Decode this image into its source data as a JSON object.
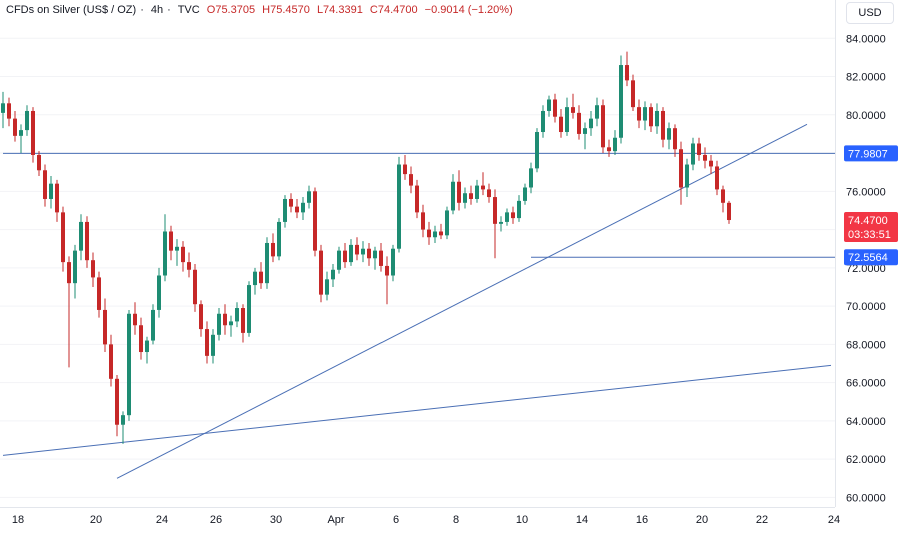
{
  "header": {
    "symbol": "CFDs on Silver (US$ / OZ)",
    "separator": "·",
    "interval": "4h",
    "source": "TVC",
    "open": "O75.3705",
    "high": "H75.4570",
    "low": "L74.3391",
    "close": "C74.4700",
    "change": "−0.9014 (−1.20%)"
  },
  "currency": "USD",
  "colors": {
    "up": "#26a69a",
    "down": "#ef5350",
    "body_up": "#1e8c73",
    "body_down": "#c62828",
    "line": "#4a6fb5",
    "axis_text": "#131722",
    "label_bg": "#2962ff"
  },
  "chart_data": {
    "type": "candlestick",
    "symbol": "CFDs on Silver (US$ / OZ)",
    "interval": "4h",
    "ylim": [
      59.5,
      86.0
    ],
    "y_ticks": [
      "84.0000",
      "82.0000",
      "80.0000",
      "78.0000",
      "76.0000",
      "74.0000",
      "72.0000",
      "70.0000",
      "68.0000",
      "66.0000",
      "64.0000",
      "62.0000",
      "60.0000"
    ],
    "x_ticks": [
      "18",
      "20",
      "24",
      "26",
      "30",
      "Apr",
      "6",
      "8",
      "10",
      "14",
      "16",
      "20",
      "22",
      "24"
    ],
    "x_tick_idx": [
      0,
      13,
      24,
      33,
      43,
      53,
      63,
      73,
      84,
      94,
      104,
      114,
      124,
      136
    ],
    "n_bars": 138,
    "candles": [
      [
        80.1,
        81.2,
        79.3,
        80.6
      ],
      [
        80.6,
        80.9,
        79.4,
        79.8
      ],
      [
        79.8,
        80.2,
        78.6,
        78.9
      ],
      [
        78.9,
        79.5,
        78.0,
        79.2
      ],
      [
        79.2,
        80.5,
        78.9,
        80.2
      ],
      [
        80.2,
        80.4,
        77.5,
        77.9
      ],
      [
        77.9,
        78.1,
        76.8,
        77.1
      ],
      [
        77.1,
        77.4,
        75.2,
        75.6
      ],
      [
        75.6,
        76.8,
        75.1,
        76.4
      ],
      [
        76.4,
        76.6,
        74.4,
        74.9
      ],
      [
        74.9,
        75.2,
        71.8,
        72.3
      ],
      [
        72.3,
        72.6,
        66.8,
        71.2
      ],
      [
        71.2,
        73.2,
        70.4,
        72.9
      ],
      [
        72.9,
        74.8,
        72.4,
        74.4
      ],
      [
        74.4,
        74.7,
        72.0,
        72.4
      ],
      [
        72.4,
        72.8,
        71.0,
        71.5
      ],
      [
        71.5,
        71.8,
        69.4,
        69.8
      ],
      [
        69.8,
        70.4,
        67.6,
        68.0
      ],
      [
        68.0,
        68.5,
        65.8,
        66.2
      ],
      [
        66.2,
        66.4,
        63.2,
        63.8
      ],
      [
        63.8,
        64.5,
        62.8,
        64.3
      ],
      [
        64.3,
        69.8,
        64.0,
        69.6
      ],
      [
        69.6,
        70.2,
        68.5,
        69.0
      ],
      [
        69.0,
        69.4,
        67.2,
        67.6
      ],
      [
        67.6,
        68.4,
        67.0,
        68.2
      ],
      [
        68.2,
        70.1,
        68.0,
        69.8
      ],
      [
        69.8,
        72.0,
        69.4,
        71.6
      ],
      [
        71.6,
        74.8,
        71.3,
        73.9
      ],
      [
        73.9,
        74.2,
        72.4,
        72.9
      ],
      [
        72.9,
        73.5,
        72.1,
        73.1
      ],
      [
        73.1,
        73.4,
        71.8,
        72.3
      ],
      [
        72.3,
        72.8,
        71.5,
        71.9
      ],
      [
        71.9,
        72.2,
        69.7,
        70.1
      ],
      [
        70.1,
        70.3,
        68.4,
        68.8
      ],
      [
        68.8,
        69.2,
        67.0,
        67.4
      ],
      [
        67.4,
        68.8,
        67.0,
        68.5
      ],
      [
        68.5,
        69.9,
        68.2,
        69.6
      ],
      [
        69.6,
        70.1,
        68.5,
        69.0
      ],
      [
        69.0,
        69.5,
        68.4,
        69.2
      ],
      [
        69.2,
        70.2,
        68.9,
        69.9
      ],
      [
        69.9,
        70.1,
        68.1,
        68.6
      ],
      [
        68.6,
        71.3,
        68.4,
        71.1
      ],
      [
        71.1,
        72.0,
        70.6,
        71.8
      ],
      [
        71.8,
        72.3,
        70.9,
        71.2
      ],
      [
        71.2,
        73.6,
        70.9,
        73.3
      ],
      [
        73.3,
        73.8,
        72.3,
        72.6
      ],
      [
        72.6,
        74.6,
        72.4,
        74.4
      ],
      [
        74.4,
        75.8,
        74.1,
        75.6
      ],
      [
        75.6,
        75.9,
        74.9,
        75.2
      ],
      [
        75.2,
        75.6,
        74.6,
        74.9
      ],
      [
        74.9,
        75.7,
        74.5,
        75.4
      ],
      [
        75.4,
        76.3,
        75.1,
        76.0
      ],
      [
        76.0,
        76.2,
        72.6,
        72.9
      ],
      [
        72.9,
        73.2,
        70.2,
        70.6
      ],
      [
        70.6,
        71.8,
        70.3,
        71.4
      ],
      [
        71.4,
        72.2,
        71.0,
        71.9
      ],
      [
        71.9,
        73.1,
        71.7,
        72.9
      ],
      [
        72.9,
        73.3,
        72.0,
        72.3
      ],
      [
        72.3,
        73.5,
        72.1,
        73.2
      ],
      [
        73.2,
        73.6,
        72.4,
        72.7
      ],
      [
        72.7,
        73.4,
        72.3,
        73.0
      ],
      [
        73.0,
        73.3,
        72.1,
        72.5
      ],
      [
        72.5,
        73.1,
        71.9,
        72.9
      ],
      [
        72.9,
        73.3,
        71.8,
        72.1
      ],
      [
        72.1,
        72.6,
        70.1,
        71.6
      ],
      [
        71.6,
        73.2,
        71.3,
        73.0
      ],
      [
        73.0,
        77.8,
        72.8,
        77.4
      ],
      [
        77.4,
        77.9,
        76.6,
        76.9
      ],
      [
        76.9,
        77.3,
        75.9,
        76.3
      ],
      [
        76.3,
        76.6,
        74.6,
        74.9
      ],
      [
        74.9,
        75.3,
        73.6,
        74.0
      ],
      [
        74.0,
        74.4,
        73.2,
        73.6
      ],
      [
        73.6,
        74.2,
        73.3,
        73.9
      ],
      [
        73.9,
        74.3,
        73.5,
        73.7
      ],
      [
        73.7,
        75.2,
        73.5,
        75.0
      ],
      [
        75.0,
        76.9,
        74.8,
        76.5
      ],
      [
        76.5,
        77.1,
        75.0,
        75.4
      ],
      [
        75.4,
        76.2,
        75.1,
        75.9
      ],
      [
        75.9,
        76.3,
        75.3,
        75.6
      ],
      [
        75.6,
        76.6,
        75.4,
        76.3
      ],
      [
        76.3,
        77.0,
        75.8,
        76.1
      ],
      [
        76.1,
        76.4,
        75.4,
        75.7
      ],
      [
        75.7,
        76.1,
        72.5,
        74.3
      ],
      [
        74.3,
        74.7,
        73.9,
        74.4
      ],
      [
        74.4,
        75.1,
        74.2,
        74.9
      ],
      [
        74.9,
        75.2,
        74.3,
        74.6
      ],
      [
        74.6,
        75.8,
        74.4,
        75.5
      ],
      [
        75.5,
        76.4,
        75.3,
        76.2
      ],
      [
        76.2,
        77.5,
        75.9,
        77.2
      ],
      [
        77.2,
        79.3,
        77.0,
        79.1
      ],
      [
        79.1,
        80.5,
        78.8,
        80.2
      ],
      [
        80.2,
        81.0,
        79.9,
        80.8
      ],
      [
        80.8,
        81.1,
        79.6,
        79.9
      ],
      [
        79.9,
        80.3,
        78.8,
        79.1
      ],
      [
        79.1,
        80.9,
        78.9,
        80.4
      ],
      [
        80.4,
        81.1,
        79.8,
        80.1
      ],
      [
        80.1,
        80.5,
        78.7,
        79.0
      ],
      [
        79.0,
        79.6,
        78.2,
        79.3
      ],
      [
        79.3,
        80.2,
        78.9,
        79.8
      ],
      [
        79.8,
        80.9,
        79.4,
        80.5
      ],
      [
        80.5,
        80.8,
        78.0,
        78.3
      ],
      [
        78.3,
        78.7,
        77.8,
        78.1
      ],
      [
        78.1,
        79.2,
        77.9,
        78.8
      ],
      [
        78.8,
        83.1,
        78.5,
        82.6
      ],
      [
        82.6,
        83.3,
        81.5,
        81.8
      ],
      [
        81.8,
        82.1,
        80.2,
        80.4
      ],
      [
        80.4,
        80.8,
        79.3,
        79.7
      ],
      [
        79.7,
        80.7,
        79.2,
        80.4
      ],
      [
        80.4,
        80.6,
        79.1,
        79.4
      ],
      [
        79.4,
        80.6,
        79.0,
        80.2
      ],
      [
        80.2,
        80.4,
        78.3,
        78.7
      ],
      [
        78.7,
        79.6,
        78.2,
        79.3
      ],
      [
        79.3,
        79.5,
        77.8,
        78.2
      ],
      [
        78.2,
        78.6,
        75.3,
        76.2
      ],
      [
        76.2,
        77.7,
        75.7,
        77.4
      ],
      [
        77.4,
        78.8,
        77.1,
        78.5
      ],
      [
        78.5,
        78.8,
        77.6,
        77.9
      ],
      [
        77.9,
        78.3,
        77.2,
        77.6
      ],
      [
        77.6,
        77.9,
        76.9,
        77.3
      ],
      [
        77.3,
        77.6,
        75.8,
        76.1
      ],
      [
        76.1,
        76.3,
        74.9,
        75.4
      ],
      [
        75.4,
        75.5,
        74.3,
        74.5
      ]
    ],
    "candle_idx": [
      0,
      1,
      2,
      3,
      4,
      5,
      6,
      7,
      8,
      9,
      10,
      11,
      12,
      13,
      14,
      15,
      16,
      17,
      18,
      19,
      20,
      21,
      22,
      23,
      24,
      25,
      26,
      27,
      28,
      29,
      30,
      31,
      32,
      33,
      34,
      35,
      36,
      37,
      38,
      39,
      40,
      41,
      42,
      43,
      44,
      45,
      46,
      47,
      48,
      49,
      50,
      51,
      52,
      53,
      54,
      55,
      56,
      57,
      58,
      59,
      60,
      61,
      62,
      63,
      64,
      65,
      66,
      67,
      68,
      69,
      70,
      71,
      72,
      73,
      74,
      75,
      76,
      77,
      78,
      79,
      80,
      81,
      82,
      83,
      84,
      85,
      86,
      87,
      88,
      89,
      90,
      91,
      92,
      93,
      94,
      95,
      96,
      97,
      98,
      99,
      100,
      101,
      102,
      103,
      104,
      105,
      106,
      107,
      108,
      109,
      110,
      111,
      112,
      113,
      114,
      115,
      116,
      117,
      118,
      119,
      120,
      121,
      122,
      123,
      124,
      125
    ],
    "horizontal_levels": [
      {
        "price": 77.9807,
        "label": "77.9807",
        "start_idx": 0
      },
      {
        "price": 72.5564,
        "label": "72.5564",
        "start_idx": 88
      }
    ],
    "trendlines": [
      {
        "x1": 19,
        "y1": 61.0,
        "x2": 134,
        "y2": 79.5
      },
      {
        "x1": 0,
        "y1": 62.2,
        "x2": 138,
        "y2": 66.9
      }
    ],
    "last_price": {
      "label": "74.4700",
      "countdown": "03:33:51"
    }
  }
}
